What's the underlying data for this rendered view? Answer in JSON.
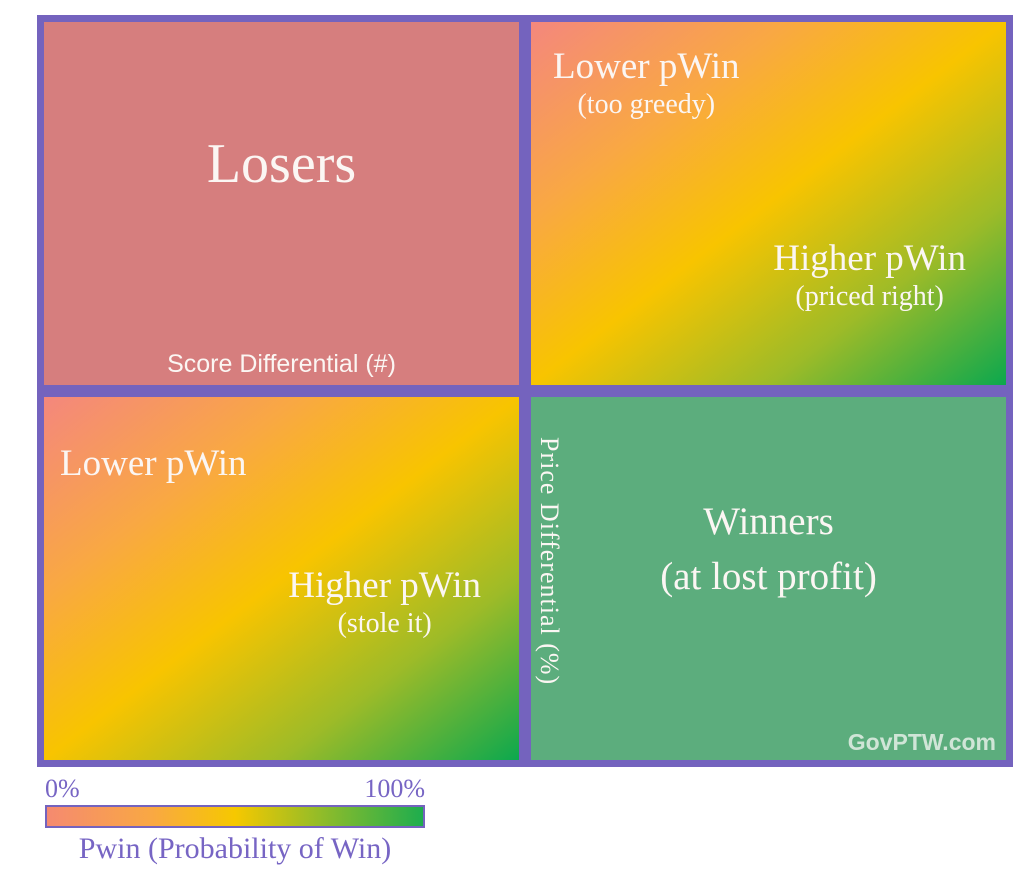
{
  "colors": {
    "frame_purple": "#7463BE",
    "losers_fill": "#D67E7E",
    "winners_fill": "#5CAD7D",
    "text_white": "#FBF6F3",
    "legend_text_purple": "#7765C4",
    "watermark_gray_green": "#E4EFE6",
    "pwin_gradient_stops": [
      "#F4877D",
      "#F9A843",
      "#F8C400",
      "#9DBB28",
      "#0CA84E"
    ]
  },
  "axes": {
    "x_label": "Score Differential (#)",
    "y_label": "Price Differential (%)"
  },
  "quadrants": {
    "top_left": {
      "name": "Losers"
    },
    "top_right": {
      "lower": {
        "label": "Lower pWin",
        "note": "(too greedy)"
      },
      "higher": {
        "label": "Higher pWin",
        "note": "(priced right)"
      }
    },
    "bottom_left": {
      "lower": {
        "label": "Lower pWin"
      },
      "higher": {
        "label": "Higher pWin",
        "note": "(stole it)"
      }
    },
    "bottom_right": {
      "name_line1": "Winners",
      "name_line2": "(at lost profit)",
      "watermark": "GovPTW.com"
    }
  },
  "legend": {
    "min": "0%",
    "max": "100%",
    "caption": "Pwin (Probability of Win)"
  }
}
